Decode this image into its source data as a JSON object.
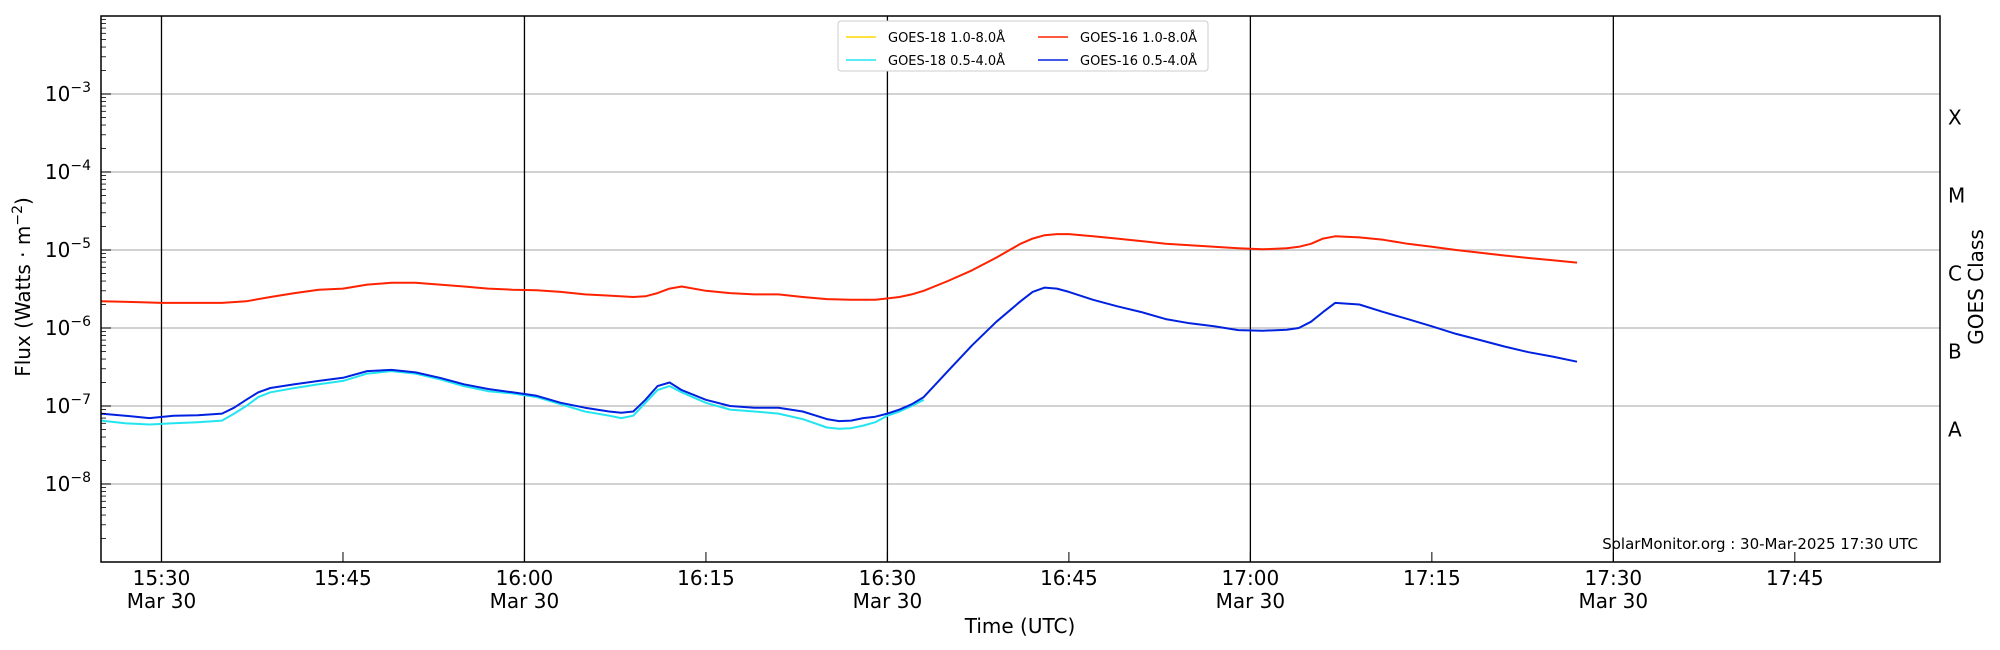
{
  "chart_data": {
    "type": "line",
    "x_unit": "time (UTC), minutes past 15:00 on 30-Mar-2025",
    "xlabel": "Time (UTC)",
    "ylabel": "Flux (Watts · m",
    "ylabel_exp": "−2",
    "ylabel_close": ")",
    "right_label": "GOES Class",
    "xlim": [
      25,
      177
    ],
    "ylim_log10": [
      -9,
      -2
    ],
    "y_scale": "log",
    "grid": "horizontal at decades; vertical black lines every 30 min",
    "legend_position": "top-center",
    "x_ticks": [
      {
        "x": 30,
        "time": "15:30",
        "date": "Mar 30"
      },
      {
        "x": 45,
        "time": "15:45",
        "date": ""
      },
      {
        "x": 60,
        "time": "16:00",
        "date": "Mar 30"
      },
      {
        "x": 75,
        "time": "16:15",
        "date": ""
      },
      {
        "x": 90,
        "time": "16:30",
        "date": "Mar 30"
      },
      {
        "x": 105,
        "time": "16:45",
        "date": ""
      },
      {
        "x": 120,
        "time": "17:00",
        "date": "Mar 30"
      },
      {
        "x": 135,
        "time": "17:15",
        "date": ""
      },
      {
        "x": 150,
        "time": "17:30",
        "date": "Mar 30"
      },
      {
        "x": 165,
        "time": "17:45",
        "date": ""
      }
    ],
    "vlines": [
      30,
      60,
      90,
      120,
      150
    ],
    "y_ticks": [
      {
        "exp": -8,
        "base": "10",
        "sup": "−8"
      },
      {
        "exp": -7,
        "base": "10",
        "sup": "−7"
      },
      {
        "exp": -6,
        "base": "10",
        "sup": "−6"
      },
      {
        "exp": -5,
        "base": "10",
        "sup": "−5"
      },
      {
        "exp": -4,
        "base": "10",
        "sup": "−4"
      },
      {
        "exp": -3,
        "base": "10",
        "sup": "−3"
      }
    ],
    "goes_classes": [
      {
        "label": "A",
        "y": 5e-08
      },
      {
        "label": "B",
        "y": 5e-07
      },
      {
        "label": "C",
        "y": 5e-06
      },
      {
        "label": "M",
        "y": 5e-05
      },
      {
        "label": "X",
        "y": 0.0005
      }
    ],
    "series": [
      {
        "name": "GOES-18 1.0-8.0Å",
        "color": "#ffd700",
        "x": [],
        "y": []
      },
      {
        "name": "GOES-16 1.0-8.0Å",
        "color": "#ff2200",
        "x": [
          25,
          28,
          30,
          32,
          35,
          37,
          39,
          41,
          43,
          45,
          47,
          49,
          51,
          53,
          55,
          57,
          59,
          61,
          63,
          65,
          67,
          69,
          70,
          71,
          72,
          73,
          75,
          77,
          79,
          81,
          83,
          85,
          87,
          89,
          91,
          92,
          93,
          95,
          97,
          99,
          101,
          102,
          103,
          104,
          105,
          107,
          109,
          111,
          113,
          115,
          117,
          119,
          121,
          123,
          124,
          125,
          126,
          127,
          129,
          131,
          133,
          135,
          137,
          139,
          141,
          143,
          145,
          147
        ],
        "y": [
          2.2e-06,
          2.15e-06,
          2.1e-06,
          2.1e-06,
          2.1e-06,
          2.2e-06,
          2.5e-06,
          2.8e-06,
          3.1e-06,
          3.2e-06,
          3.6e-06,
          3.8e-06,
          3.8e-06,
          3.6e-06,
          3.4e-06,
          3.2e-06,
          3.1e-06,
          3.05e-06,
          2.9e-06,
          2.7e-06,
          2.6e-06,
          2.5e-06,
          2.55e-06,
          2.8e-06,
          3.2e-06,
          3.4e-06,
          3e-06,
          2.8e-06,
          2.7e-06,
          2.7e-06,
          2.5e-06,
          2.35e-06,
          2.3e-06,
          2.3e-06,
          2.5e-06,
          2.7e-06,
          3e-06,
          4e-06,
          5.5e-06,
          8e-06,
          1.2e-05,
          1.4e-05,
          1.55e-05,
          1.6e-05,
          1.6e-05,
          1.5e-05,
          1.4e-05,
          1.3e-05,
          1.2e-05,
          1.15e-05,
          1.1e-05,
          1.05e-05,
          1.02e-05,
          1.05e-05,
          1.1e-05,
          1.2e-05,
          1.4e-05,
          1.5e-05,
          1.45e-05,
          1.35e-05,
          1.2e-05,
          1.1e-05,
          1e-05,
          9.2e-06,
          8.5e-06,
          7.9e-06,
          7.4e-06,
          6.9e-06
        ]
      },
      {
        "name": "GOES-18 0.5-4.0Å",
        "color": "#22e5f0",
        "x": [
          25,
          27,
          29,
          31,
          33,
          35,
          36,
          37,
          38,
          39,
          41,
          43,
          45,
          47,
          49,
          51,
          53,
          55,
          57,
          59,
          61,
          63,
          65,
          67,
          68,
          69,
          70,
          71,
          72,
          73,
          75,
          77,
          79,
          81,
          83,
          85,
          86,
          87,
          88,
          89,
          90,
          91,
          92,
          93
        ],
        "y": [
          6.5e-08,
          6e-08,
          5.8e-08,
          6e-08,
          6.2e-08,
          6.5e-08,
          8e-08,
          1e-07,
          1.3e-07,
          1.5e-07,
          1.7e-07,
          1.9e-07,
          2.1e-07,
          2.6e-07,
          2.8e-07,
          2.6e-07,
          2.2e-07,
          1.8e-07,
          1.55e-07,
          1.45e-07,
          1.3e-07,
          1.05e-07,
          8.5e-08,
          7.5e-08,
          7e-08,
          7.5e-08,
          1.1e-07,
          1.6e-07,
          1.8e-07,
          1.5e-07,
          1.1e-07,
          9e-08,
          8.5e-08,
          8e-08,
          6.8e-08,
          5.3e-08,
          5.1e-08,
          5.2e-08,
          5.6e-08,
          6.2e-08,
          7.5e-08,
          8.5e-08,
          1e-07,
          1.2e-07
        ]
      },
      {
        "name": "GOES-16 0.5-4.0Å",
        "color": "#0022e0",
        "x": [
          25,
          27,
          29,
          31,
          33,
          35,
          36,
          37,
          38,
          39,
          41,
          43,
          45,
          47,
          49,
          51,
          53,
          55,
          57,
          59,
          61,
          63,
          65,
          67,
          68,
          69,
          70,
          71,
          72,
          73,
          75,
          77,
          79,
          81,
          83,
          85,
          86,
          87,
          88,
          89,
          90,
          91,
          92,
          93,
          95,
          97,
          99,
          101,
          102,
          103,
          104,
          105,
          107,
          109,
          111,
          113,
          115,
          117,
          119,
          121,
          123,
          124,
          125,
          126,
          127,
          129,
          131,
          133,
          135,
          137,
          139,
          141,
          143,
          145,
          147
        ],
        "y": [
          8e-08,
          7.5e-08,
          7e-08,
          7.5e-08,
          7.6e-08,
          8e-08,
          9.5e-08,
          1.2e-07,
          1.5e-07,
          1.7e-07,
          1.9e-07,
          2.1e-07,
          2.3e-07,
          2.8e-07,
          2.9e-07,
          2.7e-07,
          2.3e-07,
          1.9e-07,
          1.65e-07,
          1.5e-07,
          1.35e-07,
          1.1e-07,
          9.5e-08,
          8.5e-08,
          8.2e-08,
          8.5e-08,
          1.2e-07,
          1.8e-07,
          2e-07,
          1.6e-07,
          1.2e-07,
          1e-07,
          9.5e-08,
          9.5e-08,
          8.5e-08,
          6.8e-08,
          6.4e-08,
          6.5e-08,
          7e-08,
          7.3e-08,
          8e-08,
          9e-08,
          1.05e-07,
          1.3e-07,
          2.8e-07,
          6e-07,
          1.2e-06,
          2.2e-06,
          2.9e-06,
          3.3e-06,
          3.2e-06,
          2.9e-06,
          2.3e-06,
          1.9e-06,
          1.6e-06,
          1.3e-06,
          1.15e-06,
          1.05e-06,
          9.4e-07,
          9.2e-07,
          9.5e-07,
          1e-06,
          1.2e-06,
          1.6e-06,
          2.1e-06,
          2e-06,
          1.6e-06,
          1.3e-06,
          1.05e-06,
          8.4e-07,
          7e-07,
          5.8e-07,
          4.9e-07,
          4.3e-07,
          3.7e-07
        ]
      }
    ],
    "legend": [
      {
        "label": "GOES-18 1.0-8.0Å",
        "color": "#ffd700"
      },
      {
        "label": "GOES-18 0.5-4.0Å",
        "color": "#22e5f0"
      },
      {
        "label": "GOES-16 1.0-8.0Å",
        "color": "#ff2200"
      },
      {
        "label": "GOES-16 0.5-4.0Å",
        "color": "#0022e0"
      }
    ],
    "annotation": "SolarMonitor.org : 30-Mar-2025 17:30 UTC"
  }
}
